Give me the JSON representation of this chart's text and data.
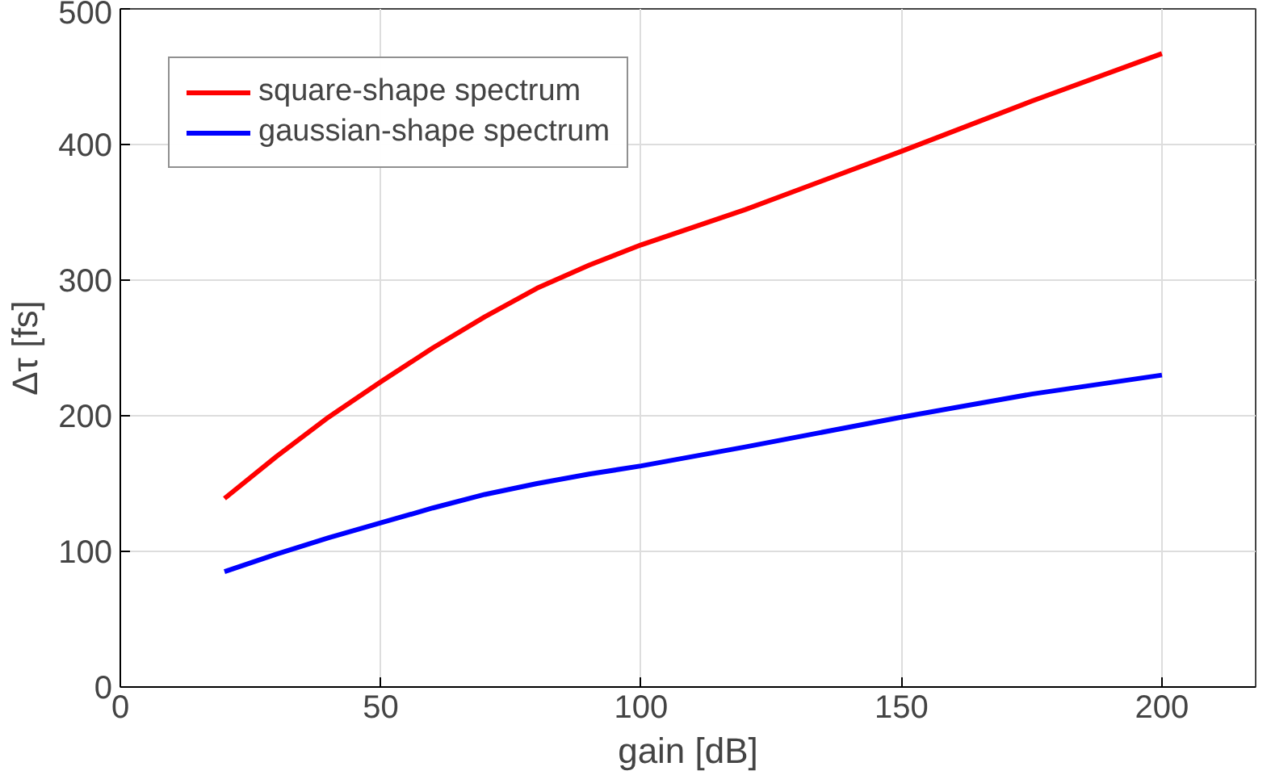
{
  "chart_data": {
    "type": "line",
    "xlabel": "gain [dB]",
    "ylabel": "Δτ [fs]",
    "xlim": [
      0,
      218
    ],
    "ylim": [
      0,
      500
    ],
    "xticks": [
      0,
      50,
      100,
      150,
      200
    ],
    "yticks": [
      0,
      100,
      200,
      300,
      400,
      500
    ],
    "grid": true,
    "legend": "top left",
    "line_style": "solid",
    "marker": "none",
    "x": [
      20,
      30,
      40,
      50,
      60,
      70,
      80,
      90,
      100,
      120,
      150,
      175,
      200
    ],
    "series": [
      {
        "name": "square-shape spectrum",
        "color": "#ff0000",
        "values": [
          139,
          170,
          199,
          225,
          250,
          273,
          294,
          311,
          326,
          352,
          395,
          432,
          467
        ]
      },
      {
        "name": "gaussian-shape spectrum",
        "color": "#0000ff",
        "values": [
          85,
          98,
          110,
          121,
          132,
          142,
          150,
          157,
          163,
          177,
          199,
          216,
          230
        ]
      }
    ]
  }
}
